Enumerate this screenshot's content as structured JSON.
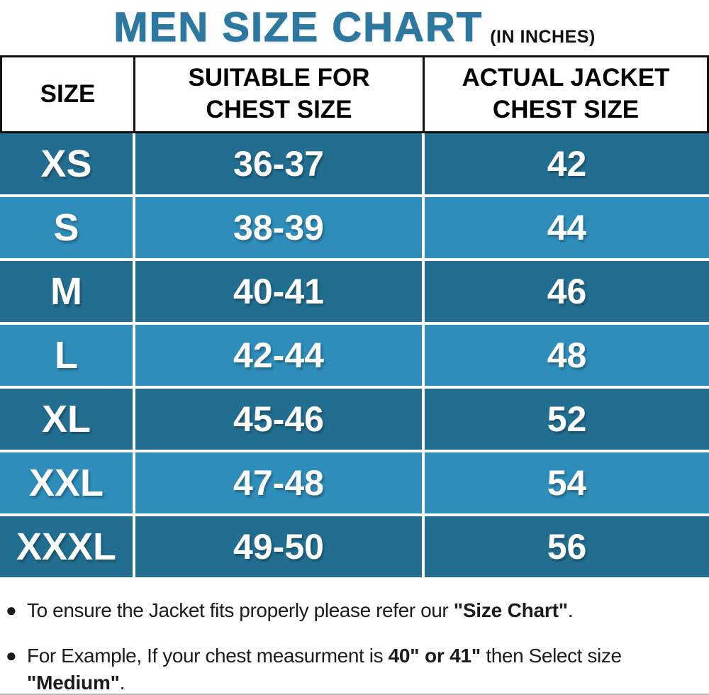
{
  "title": {
    "main": "MEN SIZE CHART",
    "unit": "(IN INCHES)"
  },
  "colors": {
    "title_teal": "#2d78a0",
    "row_dark": "#216e91",
    "row_light": "#2e8dba",
    "header_bg": "#ffffff",
    "header_text": "#000000",
    "cell_text": "#ffffff",
    "header_border": "#101010"
  },
  "table": {
    "columns": [
      {
        "line1": "SIZE",
        "line2": ""
      },
      {
        "line1": "SUITABLE FOR",
        "line2": "CHEST SIZE"
      },
      {
        "line1": "ACTUAL JACKET",
        "line2": "CHEST SIZE"
      }
    ],
    "rows": [
      {
        "size": "XS",
        "suitable": "36-37",
        "actual": "42"
      },
      {
        "size": "S",
        "suitable": "38-39",
        "actual": "44"
      },
      {
        "size": "M",
        "suitable": "40-41",
        "actual": "46"
      },
      {
        "size": "L",
        "suitable": "42-44",
        "actual": "48"
      },
      {
        "size": "XL",
        "suitable": "45-46",
        "actual": "52"
      },
      {
        "size": "XXL",
        "suitable": "47-48",
        "actual": "54"
      },
      {
        "size": "XXXL",
        "suitable": "49-50",
        "actual": "56"
      }
    ]
  },
  "notes": {
    "bullet": "●",
    "note1": {
      "t1": "To ensure the Jacket fits properly please refer our ",
      "b1": "\"Size Chart\"",
      "t2": "."
    },
    "note2": {
      "t1": "For Example, If your chest measurment is ",
      "b1": "40\" or 41\"",
      "t2": " then Select size",
      "b2": "\"Medium\"",
      "t3": "."
    }
  }
}
